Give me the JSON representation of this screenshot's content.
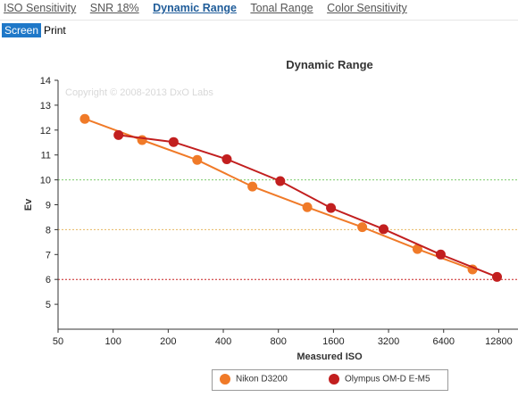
{
  "tabs": [
    {
      "label": "ISO Sensitivity",
      "active": false
    },
    {
      "label": "SNR 18%",
      "active": false
    },
    {
      "label": "Dynamic Range",
      "active": true
    },
    {
      "label": "Tonal Range",
      "active": false
    },
    {
      "label": "Color Sensitivity",
      "active": false
    }
  ],
  "view_toggle": {
    "screen": "Screen",
    "print": "Print",
    "selected": "Screen"
  },
  "chart_data": {
    "type": "line",
    "title": "Dynamic Range",
    "xlabel": "Measured ISO",
    "ylabel": "Ev",
    "watermark": "Copyright © 2008-2013 DxO Labs",
    "x_scale": "log2",
    "x_ticks": [
      50,
      100,
      200,
      400,
      800,
      1600,
      3200,
      6400,
      12800
    ],
    "x_tick_labels": [
      "50",
      "100",
      "200",
      "400",
      "800",
      "1600",
      "3200",
      "6400",
      "12800"
    ],
    "ylim": [
      4,
      14
    ],
    "y_ticks": [
      5,
      6,
      7,
      8,
      9,
      10,
      11,
      12,
      13,
      14
    ],
    "reference_lines": [
      {
        "y": 10,
        "color": "#7ccc6c",
        "style": "dotted"
      },
      {
        "y": 8,
        "color": "#e8b860",
        "style": "dotted"
      },
      {
        "y": 6,
        "color": "#c82020",
        "style": "dotted"
      }
    ],
    "series": [
      {
        "name": "Nikon D3200",
        "color": "#f07a28",
        "x": [
          70,
          144,
          288,
          577,
          1151,
          2299,
          4602,
          9204
        ],
        "y": [
          12.45,
          11.6,
          10.8,
          9.73,
          8.9,
          8.1,
          7.22,
          6.4
        ]
      },
      {
        "name": "Olympus OM-D E-M5",
        "color": "#c21f1f",
        "x": [
          107,
          214,
          418,
          819,
          1550,
          3006,
          6168,
          12530
        ],
        "y": [
          11.8,
          11.52,
          10.83,
          9.95,
          8.87,
          8.02,
          7.0,
          6.1
        ]
      }
    ],
    "legend_position": "bottom-center"
  }
}
